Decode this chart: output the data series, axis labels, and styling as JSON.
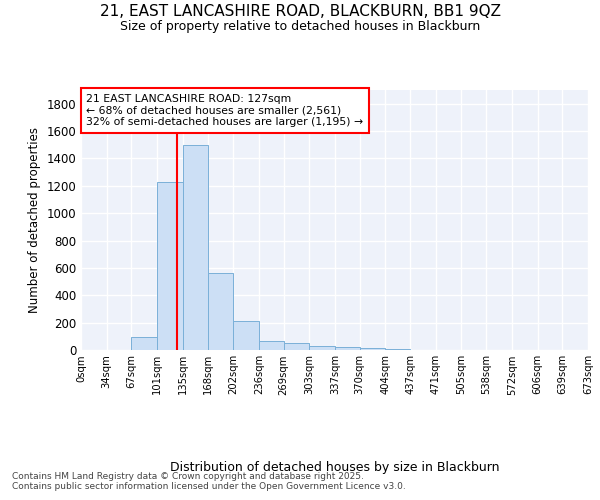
{
  "title_line1": "21, EAST LANCASHIRE ROAD, BLACKBURN, BB1 9QZ",
  "title_line2": "Size of property relative to detached houses in Blackburn",
  "xlabel": "Distribution of detached houses by size in Blackburn",
  "ylabel": "Number of detached properties",
  "bin_edges": [
    0,
    34,
    67,
    101,
    135,
    168,
    202,
    236,
    269,
    303,
    337,
    370,
    404,
    437,
    471,
    505,
    538,
    572,
    606,
    639,
    673
  ],
  "bin_labels": [
    "0sqm",
    "34sqm",
    "67sqm",
    "101sqm",
    "135sqm",
    "168sqm",
    "202sqm",
    "236sqm",
    "269sqm",
    "303sqm",
    "337sqm",
    "370sqm",
    "404sqm",
    "437sqm",
    "471sqm",
    "505sqm",
    "538sqm",
    "572sqm",
    "606sqm",
    "639sqm",
    "673sqm"
  ],
  "bar_heights": [
    0,
    0,
    95,
    1230,
    1500,
    560,
    210,
    65,
    48,
    30,
    20,
    18,
    5,
    0,
    0,
    0,
    0,
    0,
    0,
    0
  ],
  "bar_color": "#ccdff5",
  "bar_edge_color": "#7ab0d8",
  "red_line_x": 127,
  "annotation_line1": "21 EAST LANCASHIRE ROAD: 127sqm",
  "annotation_line2": "← 68% of detached houses are smaller (2,561)",
  "annotation_line3": "32% of semi-detached houses are larger (1,195) →",
  "ylim": [
    0,
    1900
  ],
  "yticks": [
    0,
    200,
    400,
    600,
    800,
    1000,
    1200,
    1400,
    1600,
    1800
  ],
  "background_color": "#eef2fa",
  "grid_color": "#ffffff",
  "footer_line1": "Contains HM Land Registry data © Crown copyright and database right 2025.",
  "footer_line2": "Contains public sector information licensed under the Open Government Licence v3.0."
}
